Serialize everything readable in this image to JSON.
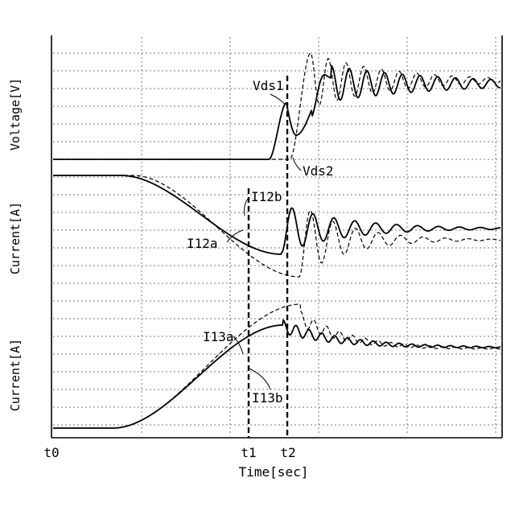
{
  "chart_data": {
    "type": "line",
    "xlabel": "Time[sec]",
    "x_ticks": [
      "t0",
      "t1",
      "t2"
    ],
    "grid": true,
    "panels": [
      {
        "id": "voltage",
        "ylabel": "Voltage[V]",
        "series": [
          {
            "name": "Vds1",
            "style": "solid"
          },
          {
            "name": "Vds2",
            "style": "dashed"
          }
        ]
      },
      {
        "id": "current12",
        "ylabel": "Current[A]",
        "series": [
          {
            "name": "I12a",
            "style": "solid"
          },
          {
            "name": "I12b",
            "style": "dashed"
          }
        ]
      },
      {
        "id": "current13",
        "ylabel": "Current[A]",
        "series": [
          {
            "name": "I13a",
            "style": "solid"
          },
          {
            "name": "I13b",
            "style": "dashed"
          }
        ]
      }
    ],
    "annotations": [
      "Vds1",
      "Vds2",
      "I12a",
      "I12b",
      "I13a",
      "I13b"
    ]
  }
}
